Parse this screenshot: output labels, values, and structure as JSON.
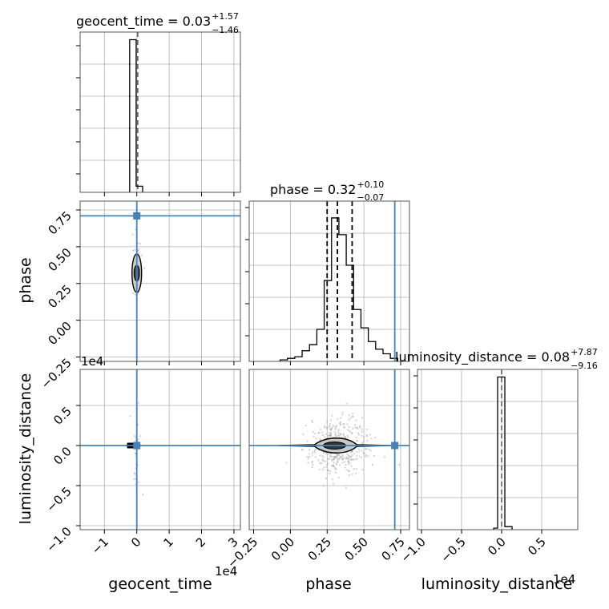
{
  "chart_data": {
    "type": "scatter",
    "plot_kind": "corner",
    "parameters": [
      "geocent_time",
      "phase",
      "luminosity_distance"
    ],
    "truth_color": "#4682b4",
    "grid": true,
    "panel_titles": [
      {
        "param": "geocent_time",
        "text": "geocent_time = 0.03",
        "plus": "+1.57",
        "minus": "−1.46"
      },
      {
        "param": "phase",
        "text": "phase = 0.32",
        "plus": "+0.10",
        "minus": "−0.07"
      },
      {
        "param": "luminosity_distance",
        "text": "luminosity_distance = 0.08",
        "plus": "+7.87",
        "minus": "−9.16"
      }
    ],
    "axis_labels": {
      "geocent_time": "geocent_time",
      "phase": "phase",
      "luminosity_distance": "luminosity_distance"
    },
    "offset_labels": {
      "geocent_time_x": "1e4",
      "luminosity_distance_x": "1e4",
      "luminosity_distance_y": "1e4"
    },
    "ranges": {
      "geocent_time": [
        -1.75,
        3.2
      ],
      "phase": [
        -0.28,
        0.81
      ],
      "luminosity_distance": [
        -1.05,
        0.95
      ]
    },
    "ticks": {
      "geocent_time": {
        "values": [
          -1,
          0,
          1,
          2,
          3
        ],
        "labels": [
          "−1",
          "0",
          "1",
          "2",
          "3"
        ]
      },
      "phase_y": {
        "values": [
          0.75,
          0.5,
          0.25,
          0.0,
          -0.25
        ],
        "labels": [
          "0.75",
          "0.50",
          "0.25",
          "0.00",
          "−0.25"
        ]
      },
      "phase_x": {
        "values": [
          -0.25,
          0.0,
          0.25,
          0.5,
          0.75
        ],
        "labels": [
          "−0.25",
          "0.00",
          "0.25",
          "0.50",
          "0.75"
        ]
      },
      "luminosity_distance_y": {
        "values": [
          0.5,
          0.0,
          -0.5,
          -1.0
        ],
        "labels": [
          "0.5",
          "0.0",
          "−0.5",
          "−1.0"
        ]
      },
      "luminosity_distance_x": {
        "values": [
          -1.0,
          -0.5,
          0.0,
          0.5
        ],
        "labels": [
          "−1.0",
          "−0.5",
          "0.0",
          "0.5"
        ]
      }
    },
    "truths": {
      "geocent_time": 0.0,
      "phase": 0.71,
      "luminosity_distance": 0.0
    },
    "quantiles": {
      "geocent_time": [
        0.03
      ],
      "phase": [
        0.25,
        0.32,
        0.42
      ],
      "luminosity_distance": [
        0.0
      ]
    },
    "histograms": {
      "geocent_time": {
        "edges": [
          -0.22,
          -0.02,
          0.18
        ],
        "counts": [
          1.0,
          0.04
        ]
      },
      "phase": {
        "edges": [
          -0.07,
          -0.02,
          0.03,
          0.08,
          0.13,
          0.18,
          0.23,
          0.28,
          0.33,
          0.38,
          0.43,
          0.48,
          0.53,
          0.58,
          0.63,
          0.68,
          0.73
        ],
        "counts": [
          0.01,
          0.02,
          0.03,
          0.07,
          0.11,
          0.21,
          0.53,
          0.94,
          0.83,
          0.63,
          0.34,
          0.22,
          0.13,
          0.08,
          0.05,
          0.02
        ]
      },
      "luminosity_distance": {
        "edges": [
          -0.1,
          -0.05,
          0.04,
          0.13
        ],
        "counts": [
          0.01,
          1.0,
          0.02
        ]
      }
    },
    "hist_ylim": [
      0,
      1.05
    ]
  }
}
